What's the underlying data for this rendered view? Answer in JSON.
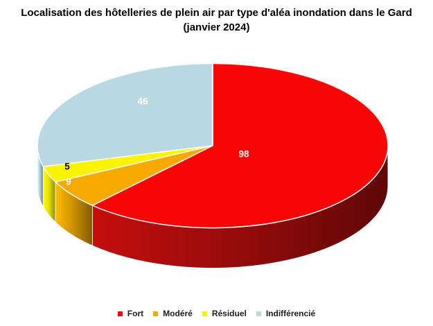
{
  "title": {
    "line1": "Localisation des hôtelleries de plein air par type d'aléa inondation dans le Gard",
    "line2": "(janvier 2024)"
  },
  "chart_data": {
    "type": "pie",
    "style": "3d",
    "title": "Localisation des hôtelleries de plein air par type d'aléa inondation dans le Gard (janvier 2024)",
    "categories": [
      "Fort",
      "Modéré",
      "Résiduel",
      "Indifférencié"
    ],
    "values": [
      98,
      9,
      5,
      46
    ],
    "total": 158,
    "start_angle_deg": 0,
    "direction": "clockwise",
    "legend_position": "bottom",
    "background_color": "#FFFFFF",
    "data_labels_shown": true,
    "slices": [
      {
        "label": "Fort",
        "value": 98,
        "color": "#F80505",
        "side_color": "#9A0B0B",
        "label_color": "#FFFFFF"
      },
      {
        "label": "Modéré",
        "value": 9,
        "color": "#F6AA00",
        "side_color": "#D19300",
        "label_color": "#FFFFFF"
      },
      {
        "label": "Résiduel",
        "value": 5,
        "color": "#FAF400",
        "side_color": "#E8E100",
        "label_color": "#000000"
      },
      {
        "label": "Indifférencié",
        "value": 46,
        "color": "#B8D8E2",
        "side_color": "#A7CDD9",
        "label_color": "#FFFFFF"
      }
    ]
  }
}
